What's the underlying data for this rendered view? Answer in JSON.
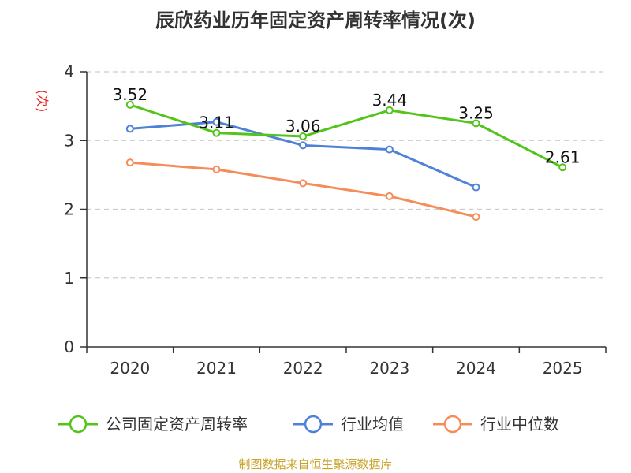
{
  "title": "辰欣药业历年固定资产周转率情况(次)",
  "footer": "制图数据来自恒生聚源数据库",
  "chart_data": {
    "type": "line",
    "title": "辰欣药业历年固定资产周转率情况(次)",
    "ylabel": "(次)",
    "xlabel": "",
    "categories": [
      "2020",
      "2021",
      "2022",
      "2023",
      "2024",
      "2025"
    ],
    "ylim": [
      0,
      4
    ],
    "yticks": [
      0,
      1,
      2,
      3,
      4
    ],
    "grid": true,
    "legend_position": "bottom",
    "series": [
      {
        "name": "公司固定资产周转率",
        "color": "#52c41a",
        "values": [
          3.52,
          3.11,
          3.06,
          3.44,
          3.25,
          2.61
        ],
        "labels": [
          "3.52",
          "3.11",
          "3.06",
          "3.44",
          "3.25",
          "2.61"
        ]
      },
      {
        "name": "行业均值",
        "color": "#4f81d9",
        "values": [
          3.17,
          3.27,
          2.93,
          2.87,
          2.32,
          null
        ]
      },
      {
        "name": "行业中位数",
        "color": "#f58d5a",
        "values": [
          2.68,
          2.58,
          2.38,
          2.19,
          1.89,
          null
        ]
      }
    ]
  }
}
